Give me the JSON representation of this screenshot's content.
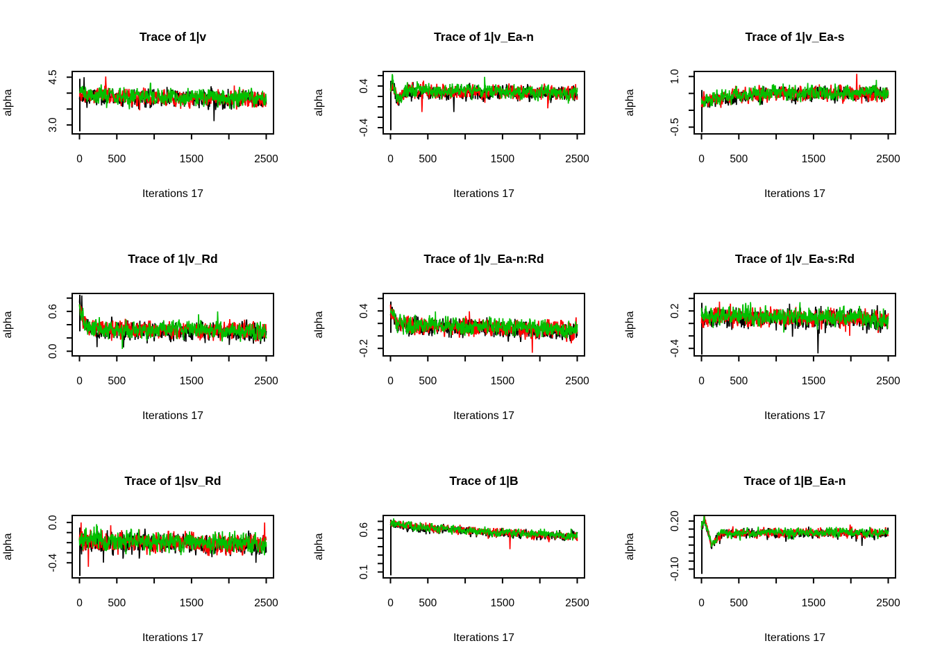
{
  "figure": {
    "background": "#ffffff",
    "rows": 3,
    "cols": 3,
    "axis_color": "#000000",
    "grid": "off",
    "legend": "none"
  },
  "chain_colors": [
    "#000000",
    "#ff0000",
    "#00c000"
  ],
  "chart_data": [
    {
      "type": "line",
      "title": "Trace of 1|v",
      "xlabel": "Iterations 17",
      "ylabel": "alpha",
      "xlim": [
        0,
        2500
      ],
      "ylim": [
        2.72,
        4.68
      ],
      "xticks": [
        0,
        500,
        1000,
        1500,
        2000,
        2500
      ],
      "xtick_labels": [
        {
          "value": 0,
          "text": "0"
        },
        {
          "value": 500,
          "text": "500"
        },
        {
          "value": 1500,
          "text": "1500"
        },
        {
          "value": 2500,
          "text": "2500"
        }
      ],
      "yticks": [
        3.0,
        3.5,
        4.0,
        4.5
      ],
      "ytick_labels": [
        {
          "value": 3.0,
          "text": "3.0"
        },
        {
          "value": 4.5,
          "text": "4.5"
        }
      ],
      "series": [
        {
          "name": "chain-1",
          "color": "#000000"
        },
        {
          "name": "chain-2",
          "color": "#ff0000"
        },
        {
          "name": "chain-3",
          "color": "#00c000"
        }
      ],
      "envelope": [
        [
          0,
          3.95
        ],
        [
          100,
          3.9
        ],
        [
          2500,
          3.8
        ]
      ],
      "half_band": 0.38,
      "start_line": [
        2.8,
        4.45
      ],
      "spikes": [
        {
          "t": 60,
          "v": 4.5,
          "chain": 0
        },
        {
          "t": 350,
          "v": 4.52,
          "chain": 1
        },
        {
          "t": 1800,
          "v": 3.12,
          "chain": 0
        }
      ],
      "seed": 101
    },
    {
      "type": "line",
      "title": "Trace of 1|v_Ea-n",
      "xlabel": "Iterations 17",
      "ylabel": "alpha",
      "xlim": [
        0,
        2500
      ],
      "ylim": [
        -0.52,
        0.68
      ],
      "xticks": [
        0,
        500,
        1000,
        1500,
        2000,
        2500
      ],
      "xtick_labels": [
        {
          "value": 0,
          "text": "0"
        },
        {
          "value": 500,
          "text": "500"
        },
        {
          "value": 1500,
          "text": "1500"
        },
        {
          "value": 2500,
          "text": "2500"
        }
      ],
      "yticks": [
        -0.4,
        -0.2,
        0.0,
        0.2,
        0.4,
        0.6
      ],
      "ytick_labels": [
        {
          "value": -0.4,
          "text": "-0.4"
        },
        {
          "value": 0.4,
          "text": "0.4"
        }
      ],
      "series": [
        {
          "name": "chain-1",
          "color": "#000000"
        },
        {
          "name": "chain-2",
          "color": "#ff0000"
        },
        {
          "name": "chain-3",
          "color": "#00c000"
        }
      ],
      "envelope": [
        [
          0,
          0.3
        ],
        [
          25,
          0.5
        ],
        [
          90,
          0.1
        ],
        [
          180,
          0.3
        ],
        [
          2500,
          0.27
        ]
      ],
      "half_band": 0.2,
      "start_line": [
        -0.45,
        0.5
      ],
      "spikes": [
        {
          "t": 420,
          "v": -0.1,
          "chain": 1
        },
        {
          "t": 850,
          "v": -0.1,
          "chain": 0
        }
      ],
      "seed": 202
    },
    {
      "type": "line",
      "title": "Trace of 1|v_Ea-s",
      "xlabel": "Iterations 17",
      "ylabel": "alpha",
      "xlim": [
        0,
        2500
      ],
      "ylim": [
        -0.7,
        1.15
      ],
      "xticks": [
        0,
        500,
        1000,
        1500,
        2000,
        2500
      ],
      "xtick_labels": [
        {
          "value": 0,
          "text": "0"
        },
        {
          "value": 500,
          "text": "500"
        },
        {
          "value": 1500,
          "text": "1500"
        },
        {
          "value": 2500,
          "text": "2500"
        }
      ],
      "yticks": [
        -0.5,
        0.0,
        0.5,
        1.0
      ],
      "ytick_labels": [
        {
          "value": -0.5,
          "text": "-0.5"
        },
        {
          "value": 1.0,
          "text": "1.0"
        }
      ],
      "series": [
        {
          "name": "chain-1",
          "color": "#000000"
        },
        {
          "name": "chain-2",
          "color": "#ff0000"
        },
        {
          "name": "chain-3",
          "color": "#00c000"
        }
      ],
      "envelope": [
        [
          0,
          0.25
        ],
        [
          300,
          0.38
        ],
        [
          900,
          0.5
        ],
        [
          2500,
          0.5
        ]
      ],
      "half_band": 0.33,
      "start_line": [
        -0.65,
        0.6
      ],
      "spikes": [
        {
          "t": 2080,
          "v": 1.08,
          "chain": 1
        }
      ],
      "seed": 303
    },
    {
      "type": "line",
      "title": "Trace of 1|v_Rd",
      "xlabel": "Iterations 17",
      "ylabel": "alpha",
      "xlim": [
        0,
        2500
      ],
      "ylim": [
        -0.07,
        0.87
      ],
      "xticks": [
        0,
        500,
        1000,
        1500,
        2000,
        2500
      ],
      "xtick_labels": [
        {
          "value": 0,
          "text": "0"
        },
        {
          "value": 500,
          "text": "500"
        },
        {
          "value": 1500,
          "text": "1500"
        },
        {
          "value": 2500,
          "text": "2500"
        }
      ],
      "yticks": [
        0.0,
        0.2,
        0.4,
        0.6,
        0.8
      ],
      "ytick_labels": [
        {
          "value": 0.0,
          "text": "0.0"
        },
        {
          "value": 0.6,
          "text": "0.6"
        }
      ],
      "series": [
        {
          "name": "chain-1",
          "color": "#000000"
        },
        {
          "name": "chain-2",
          "color": "#ff0000"
        },
        {
          "name": "chain-3",
          "color": "#00c000"
        }
      ],
      "envelope": [
        [
          0,
          0.7
        ],
        [
          50,
          0.45
        ],
        [
          150,
          0.33
        ],
        [
          2500,
          0.3
        ]
      ],
      "half_band": 0.19,
      "start_line": [
        0.3,
        0.85
      ],
      "spikes": [
        {
          "t": 30,
          "v": 0.84,
          "chain": 0
        },
        {
          "t": 1850,
          "v": 0.6,
          "chain": 2
        }
      ],
      "seed": 404
    },
    {
      "type": "line",
      "title": "Trace of 1|v_Ea-n:Rd",
      "xlabel": "Iterations 17",
      "ylabel": "alpha",
      "xlim": [
        0,
        2500
      ],
      "ylim": [
        -0.32,
        0.68
      ],
      "xticks": [
        0,
        500,
        1000,
        1500,
        2000,
        2500
      ],
      "xtick_labels": [
        {
          "value": 0,
          "text": "0"
        },
        {
          "value": 500,
          "text": "500"
        },
        {
          "value": 1500,
          "text": "1500"
        },
        {
          "value": 2500,
          "text": "2500"
        }
      ],
      "yticks": [
        -0.2,
        0.0,
        0.2,
        0.4,
        0.6
      ],
      "ytick_labels": [
        {
          "value": -0.2,
          "text": "-0.2"
        },
        {
          "value": 0.4,
          "text": "0.4"
        }
      ],
      "series": [
        {
          "name": "chain-1",
          "color": "#000000"
        },
        {
          "name": "chain-2",
          "color": "#ff0000"
        },
        {
          "name": "chain-3",
          "color": "#00c000"
        }
      ],
      "envelope": [
        [
          0,
          0.42
        ],
        [
          80,
          0.18
        ],
        [
          300,
          0.16
        ],
        [
          2500,
          0.1
        ]
      ],
      "half_band": 0.2,
      "start_line": [
        0.05,
        0.55
      ],
      "spikes": [
        {
          "t": 1900,
          "v": -0.27,
          "chain": 1
        }
      ],
      "seed": 505
    },
    {
      "type": "line",
      "title": "Trace of 1|v_Ea-s:Rd",
      "xlabel": "Iterations 17",
      "ylabel": "alpha",
      "xlim": [
        0,
        2500
      ],
      "ylim": [
        -0.52,
        0.48
      ],
      "xticks": [
        0,
        500,
        1000,
        1500,
        2000,
        2500
      ],
      "xtick_labels": [
        {
          "value": 0,
          "text": "0"
        },
        {
          "value": 500,
          "text": "500"
        },
        {
          "value": 1500,
          "text": "1500"
        },
        {
          "value": 2500,
          "text": "2500"
        }
      ],
      "yticks": [
        -0.4,
        -0.2,
        0.0,
        0.2,
        0.4
      ],
      "ytick_labels": [
        {
          "value": -0.4,
          "text": "-0.4"
        },
        {
          "value": 0.2,
          "text": "0.2"
        }
      ],
      "series": [
        {
          "name": "chain-1",
          "color": "#000000"
        },
        {
          "name": "chain-2",
          "color": "#ff0000"
        },
        {
          "name": "chain-3",
          "color": "#00c000"
        }
      ],
      "envelope": [
        [
          0,
          0.12
        ],
        [
          2500,
          0.06
        ]
      ],
      "half_band": 0.22,
      "start_line": [
        -0.5,
        0.33
      ],
      "spikes": [
        {
          "t": 1560,
          "v": -0.48,
          "chain": 0
        }
      ],
      "seed": 606
    },
    {
      "type": "line",
      "title": "Trace of 1|sv_Rd",
      "xlabel": "Iterations 17",
      "ylabel": "alpha",
      "xlim": [
        0,
        2500
      ],
      "ylim": [
        -0.55,
        0.07
      ],
      "xticks": [
        0,
        500,
        1000,
        1500,
        2000,
        2500
      ],
      "xtick_labels": [
        {
          "value": 0,
          "text": "0"
        },
        {
          "value": 500,
          "text": "500"
        },
        {
          "value": 1500,
          "text": "1500"
        },
        {
          "value": 2500,
          "text": "2500"
        }
      ],
      "yticks": [
        -0.4,
        -0.3,
        -0.2,
        -0.1,
        0.0
      ],
      "ytick_labels": [
        {
          "value": -0.4,
          "text": "-0.4"
        },
        {
          "value": 0.0,
          "text": "0.0"
        }
      ],
      "series": [
        {
          "name": "chain-1",
          "color": "#000000"
        },
        {
          "name": "chain-2",
          "color": "#ff0000"
        },
        {
          "name": "chain-3",
          "color": "#00c000"
        }
      ],
      "envelope": [
        [
          0,
          -0.18
        ],
        [
          2500,
          -0.22
        ]
      ],
      "half_band": 0.15,
      "start_line": [
        -0.53,
        -0.05
      ],
      "spikes": [
        {
          "t": 20,
          "v": 0.0,
          "chain": 1
        },
        {
          "t": 120,
          "v": -0.44,
          "chain": 1
        },
        {
          "t": 2480,
          "v": 0.0,
          "chain": 1
        }
      ],
      "seed": 707
    },
    {
      "type": "line",
      "title": "Trace of 1|B",
      "xlabel": "Iterations 17",
      "ylabel": "alpha",
      "xlim": [
        0,
        2500
      ],
      "ylim": [
        0.03,
        0.77
      ],
      "xticks": [
        0,
        500,
        1000,
        1500,
        2000,
        2500
      ],
      "xtick_labels": [
        {
          "value": 0,
          "text": "0"
        },
        {
          "value": 500,
          "text": "500"
        },
        {
          "value": 1500,
          "text": "1500"
        },
        {
          "value": 2500,
          "text": "2500"
        }
      ],
      "yticks": [
        0.1,
        0.2,
        0.3,
        0.4,
        0.5,
        0.6,
        0.7
      ],
      "ytick_labels": [
        {
          "value": 0.1,
          "text": "0.1"
        },
        {
          "value": 0.6,
          "text": "0.6"
        }
      ],
      "series": [
        {
          "name": "chain-1",
          "color": "#000000"
        },
        {
          "name": "chain-2",
          "color": "#ff0000"
        },
        {
          "name": "chain-3",
          "color": "#00c000"
        }
      ],
      "envelope": [
        [
          0,
          0.67
        ],
        [
          400,
          0.62
        ],
        [
          1400,
          0.57
        ],
        [
          2500,
          0.52
        ]
      ],
      "half_band": 0.075,
      "start_line": [
        0.06,
        0.72
      ],
      "spikes": [
        {
          "t": 1600,
          "v": 0.37,
          "chain": 1
        }
      ],
      "seed": 808
    },
    {
      "type": "line",
      "title": "Trace of 1|B_Ea-n",
      "xlabel": "Iterations 17",
      "ylabel": "alpha",
      "xlim": [
        0,
        2500
      ],
      "ylim": [
        -0.155,
        0.235
      ],
      "xticks": [
        0,
        500,
        1000,
        1500,
        2000,
        2500
      ],
      "xtick_labels": [
        {
          "value": 0,
          "text": "0"
        },
        {
          "value": 500,
          "text": "500"
        },
        {
          "value": 1500,
          "text": "1500"
        },
        {
          "value": 2500,
          "text": "2500"
        }
      ],
      "yticks": [
        -0.1,
        -0.05,
        0.0,
        0.05,
        0.1,
        0.15,
        0.2
      ],
      "ytick_labels": [
        {
          "value": -0.1,
          "text": "-0.10"
        },
        {
          "value": 0.2,
          "text": "0.20"
        }
      ],
      "series": [
        {
          "name": "chain-1",
          "color": "#000000"
        },
        {
          "name": "chain-2",
          "color": "#ff0000"
        },
        {
          "name": "chain-3",
          "color": "#00c000"
        }
      ],
      "envelope": [
        [
          0,
          0.16
        ],
        [
          35,
          0.21
        ],
        [
          130,
          0.055
        ],
        [
          280,
          0.125
        ],
        [
          2500,
          0.125
        ]
      ],
      "half_band": 0.042,
      "start_line": [
        -0.13,
        0.2
      ],
      "spikes": [
        {
          "t": 2150,
          "v": 0.045,
          "chain": 0
        }
      ],
      "seed": 909
    }
  ]
}
